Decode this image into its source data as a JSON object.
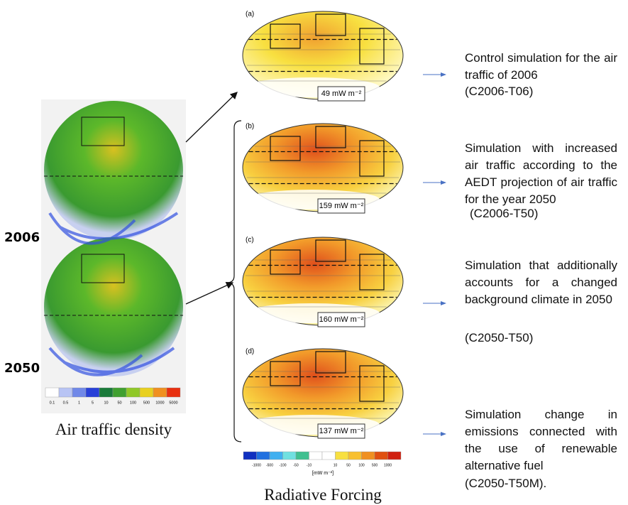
{
  "left": {
    "years": [
      "2006",
      "2050"
    ],
    "caption": "Air traffic density",
    "colorbar_ticks": [
      "0.1",
      "0.5",
      "1",
      "5",
      "10",
      "50",
      "100",
      "500",
      "1000",
      "5000"
    ]
  },
  "panels": [
    {
      "label": "(a)",
      "forcing": "49 mW m⁻²",
      "description": "Control simulation for the air traffic of 2006",
      "code": "(C2006-T06)"
    },
    {
      "label": "(b)",
      "forcing": "159 mW m⁻²",
      "description": "Simulation with increased air traffic according to the AEDT projection of air traffic for the year 2050",
      "code": "(C2006-T50)"
    },
    {
      "label": "(c)",
      "forcing": "160 mW m⁻²",
      "description": "Simulation that additionally accounts for a changed background climate in 2050",
      "code": "(C2050-T50)"
    },
    {
      "label": "(d)",
      "forcing": "137 mW m⁻²",
      "description": "Simulation change in emissions connected with the use of renewable alternative fuel",
      "code": "(C2050-T50M)."
    }
  ],
  "rf_colorbar": {
    "ticks": [
      "-1000",
      "-500",
      "-100",
      "-50",
      "-10",
      "10",
      "50",
      "100",
      "500",
      "1000"
    ],
    "unit": "[mW m⁻²]"
  },
  "caption": "Radiative Forcing"
}
